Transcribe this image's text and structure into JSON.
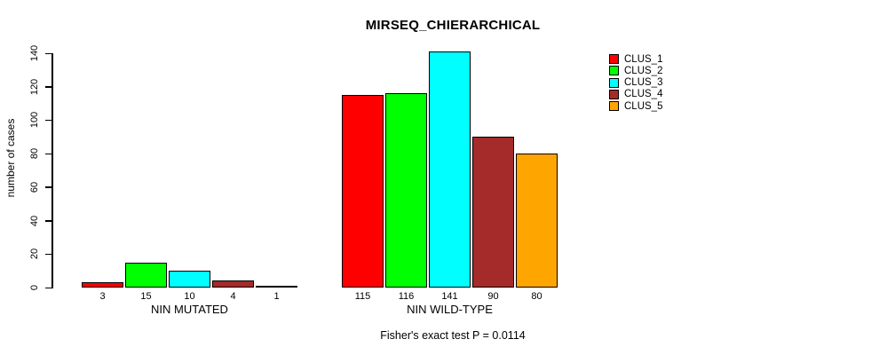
{
  "chart_data": {
    "type": "bar",
    "title": "MIRSEQ_CHIERARCHICAL",
    "ylabel": "number of cases",
    "ylim": [
      0,
      140
    ],
    "y_ticks": [
      0,
      20,
      40,
      60,
      80,
      100,
      120,
      140
    ],
    "categories": [
      "NIN MUTATED",
      "NIN WILD-TYPE"
    ],
    "series": [
      {
        "name": "CLUS_1",
        "color": "#FF0000",
        "values": [
          3,
          115
        ]
      },
      {
        "name": "CLUS_2",
        "color": "#00FF00",
        "values": [
          15,
          116
        ]
      },
      {
        "name": "CLUS_3",
        "color": "#00FFFF",
        "values": [
          10,
          141
        ]
      },
      {
        "name": "CLUS_4",
        "color": "#A52A2A",
        "values": [
          4,
          90
        ]
      },
      {
        "name": "CLUS_5",
        "color": "#FFA500",
        "values": [
          1,
          80
        ]
      }
    ],
    "bar_value_labels": true,
    "grid": false,
    "legend_position": "top-right",
    "legend_entries": [
      "CLUS_1",
      "CLUS_2",
      "CLUS_3",
      "CLUS_4",
      "CLUS_5"
    ],
    "annotation": "Fisher's exact test P = 0.0114"
  }
}
